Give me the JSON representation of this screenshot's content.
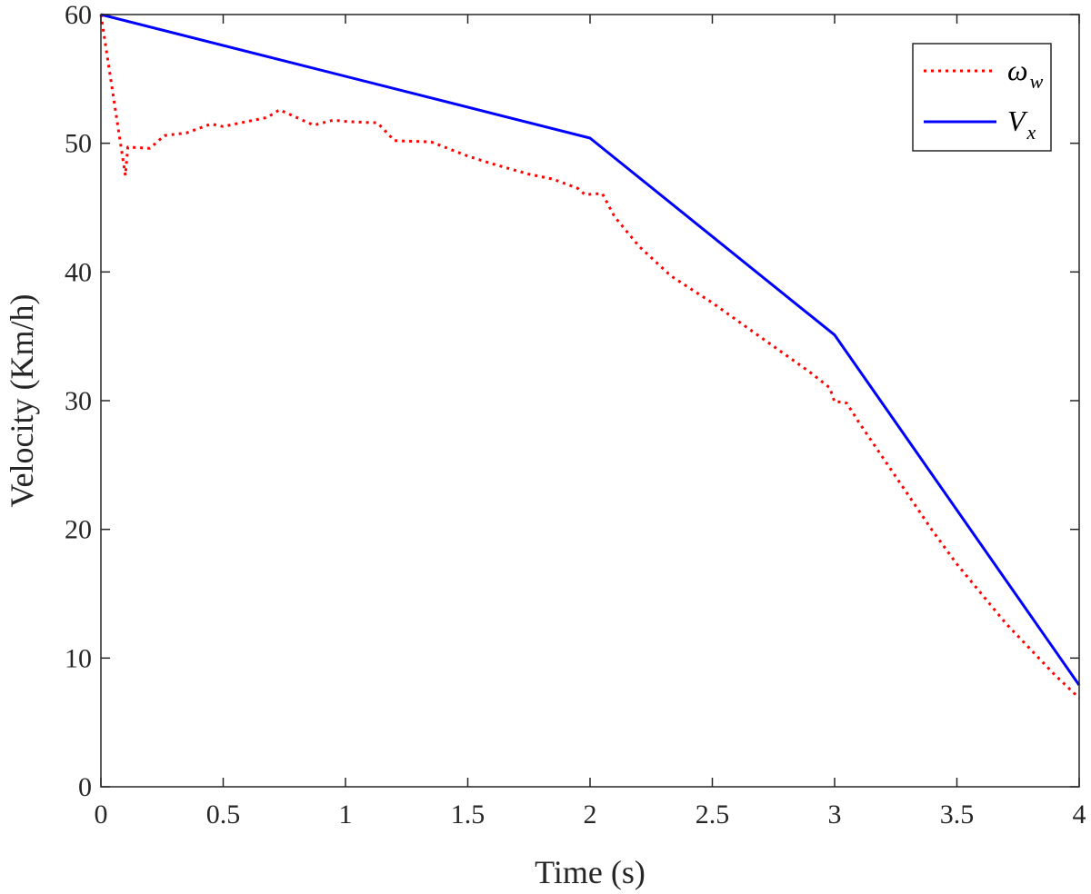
{
  "chart_data": {
    "type": "line",
    "title": "",
    "xlabel": "Time (s)",
    "ylabel": "Velocity (Km/h)",
    "xlim": [
      0,
      4
    ],
    "ylim": [
      0,
      60
    ],
    "xticks": [
      0,
      0.5,
      1,
      1.5,
      2,
      2.5,
      3,
      3.5,
      4
    ],
    "xtick_labels": [
      "0",
      "0.5",
      "1",
      "1.5",
      "2",
      "2.5",
      "3",
      "3.5",
      "4"
    ],
    "yticks": [
      0,
      10,
      20,
      30,
      40,
      50,
      60
    ],
    "ytick_labels": [
      "0",
      "10",
      "20",
      "30",
      "40",
      "50",
      "60"
    ],
    "grid": false,
    "legend_position": "top-right",
    "series": [
      {
        "name": "ωw",
        "legend_main": "ω",
        "legend_sub": "w",
        "style": "dotted",
        "color": "#ff0000",
        "x": [
          0,
          0.1,
          0.11,
          0.2,
          0.26,
          0.35,
          0.45,
          0.5,
          0.6,
          0.68,
          0.73,
          0.8,
          0.87,
          0.95,
          1.0,
          1.1,
          1.13,
          1.2,
          1.35,
          1.5,
          1.6,
          1.75,
          1.85,
          1.95,
          1.98,
          2.05,
          2.1,
          2.2,
          2.33,
          2.5,
          2.7,
          2.9,
          2.98,
          3.0,
          3.03,
          3.05,
          3.1,
          3.2,
          3.3,
          3.4,
          3.5,
          3.6,
          3.7,
          3.8,
          3.9,
          4.0
        ],
        "values": [
          60,
          47.5,
          49.7,
          49.6,
          50.6,
          50.8,
          51.5,
          51.3,
          51.7,
          52.0,
          52.6,
          52.0,
          51.4,
          51.8,
          51.7,
          51.6,
          51.6,
          50.2,
          50.1,
          49.0,
          48.4,
          47.6,
          47.2,
          46.5,
          46.0,
          46.1,
          44.3,
          42.0,
          39.7,
          37.6,
          34.9,
          32.2,
          31.0,
          29.9,
          29.9,
          29.8,
          28.3,
          25.5,
          22.7,
          19.9,
          17.3,
          15.0,
          12.7,
          10.7,
          8.7,
          6.9
        ]
      },
      {
        "name": "Vx",
        "legend_main": "V",
        "legend_sub": "x",
        "style": "solid",
        "color": "#0000ff",
        "x": [
          0,
          2,
          3,
          4
        ],
        "values": [
          60,
          50.4,
          35.1,
          7.9
        ]
      }
    ]
  }
}
